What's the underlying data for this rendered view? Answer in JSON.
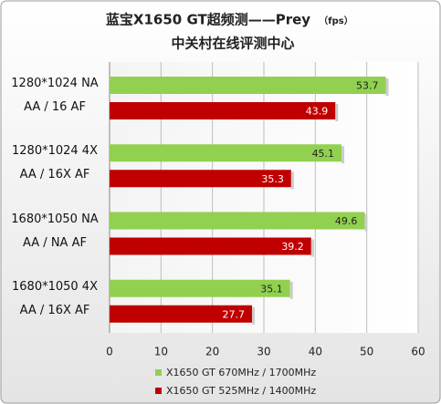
{
  "chart_data": {
    "type": "bar",
    "orientation": "horizontal",
    "title": "蓝宝X1650 GT超频测——Prey",
    "title_unit": "（fps）",
    "subtitle": "中关村在线评测中心",
    "categories": [
      "1280*1024 NA AA / 16 AF",
      "1280*1024 4X AA / 16X AF",
      "1680*1050 NA AA / NA AF",
      "1680*1050 4X AA / 16X AF"
    ],
    "series": [
      {
        "name": "X1650 GT 670MHz / 1700MHz",
        "color": "#92d050",
        "values": [
          53.7,
          45.1,
          49.6,
          35.1
        ]
      },
      {
        "name": "X1650 GT 525MHz / 1400MHz",
        "color": "#c00000",
        "values": [
          43.9,
          35.3,
          39.2,
          27.7
        ]
      }
    ],
    "xlim": [
      0,
      60
    ],
    "xticks": [
      0,
      10,
      20,
      30,
      40,
      50,
      60
    ],
    "grid": true
  }
}
